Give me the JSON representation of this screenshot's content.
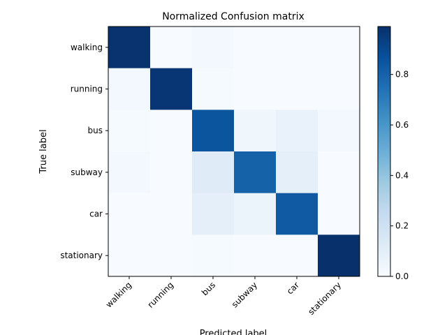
{
  "chart_data": {
    "type": "heatmap",
    "title": "Normalized Confusion matrix",
    "xlabel": "Predicted label",
    "ylabel": "True label",
    "x_categories": [
      "walking",
      "running",
      "bus",
      "subway",
      "car",
      "stationary"
    ],
    "y_categories": [
      "walking",
      "running",
      "bus",
      "subway",
      "car",
      "stationary"
    ],
    "values": [
      [
        0.98,
        0.0,
        0.02,
        0.0,
        0.0,
        0.0
      ],
      [
        0.02,
        0.97,
        0.01,
        0.0,
        0.0,
        0.0
      ],
      [
        0.01,
        0.0,
        0.85,
        0.04,
        0.07,
        0.02
      ],
      [
        0.02,
        0.0,
        0.12,
        0.8,
        0.09,
        0.0
      ],
      [
        0.0,
        0.0,
        0.09,
        0.06,
        0.83,
        0.0
      ],
      [
        0.0,
        0.0,
        0.01,
        0.0,
        0.0,
        0.99
      ]
    ],
    "colorbar": {
      "min": 0.0,
      "max": 0.99,
      "ticks": [
        0.0,
        0.2,
        0.4,
        0.6,
        0.8
      ],
      "tick_labels": [
        "0.0",
        "0.2",
        "0.4",
        "0.6",
        "0.8"
      ]
    },
    "colormap": "Blues"
  }
}
